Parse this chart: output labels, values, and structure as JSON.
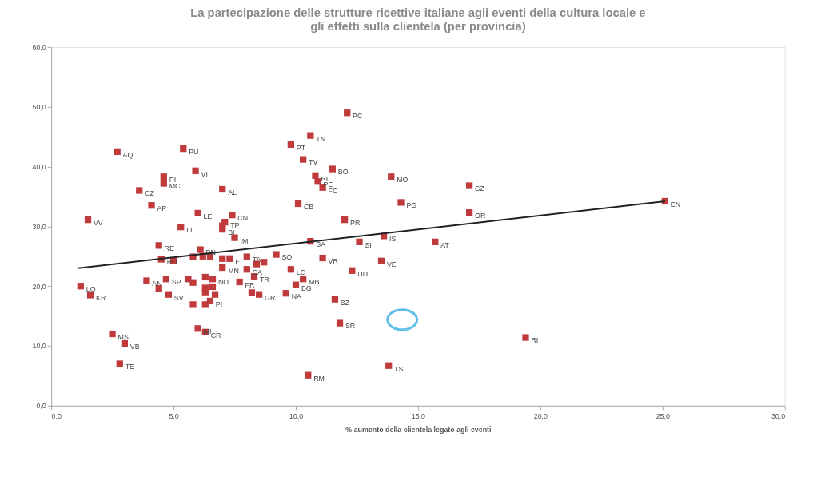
{
  "chart_data": {
    "type": "scatter",
    "title": [
      "La partecipazione delle strutture ricettive italiane agli eventi della cultura locale e",
      "gli effetti sulla clientela (per provincia)"
    ],
    "xlabel": "% aumento della clientela legato agli eventi",
    "xlim": [
      0,
      30
    ],
    "ylim": [
      0,
      60
    ],
    "xticks": [
      {
        "value": 0,
        "label": "0,0"
      },
      {
        "value": 5,
        "label": "5,0"
      },
      {
        "value": 10,
        "label": "10,0"
      },
      {
        "value": 15,
        "label": "15,0"
      },
      {
        "value": 20,
        "label": "20,0"
      },
      {
        "value": 25,
        "label": "25,0"
      },
      {
        "value": 30,
        "label": "30,0"
      }
    ],
    "yticks": [
      {
        "value": 0,
        "label": "0,0"
      },
      {
        "value": 10,
        "label": "10,0"
      },
      {
        "value": 20,
        "label": "20,0"
      },
      {
        "value": 30,
        "label": "30,0"
      },
      {
        "value": 40,
        "label": "40,0"
      },
      {
        "value": 50,
        "label": "50,0"
      },
      {
        "value": 60,
        "label": "60,0"
      }
    ],
    "grid": false,
    "marker": "square",
    "series": [
      {
        "color": "#c0393b",
        "x": [
          12.1,
          10.6,
          9.8,
          2.7,
          5.4,
          10.3,
          5.9,
          11.5,
          10.8,
          13.9,
          4.6,
          4.6,
          10.9,
          11.1,
          17.1,
          7.0,
          3.6,
          10.1,
          14.3,
          4.1,
          17.1,
          6.0,
          7.4,
          1.5,
          12.0,
          7.1,
          7.0,
          5.3,
          7.0,
          7.5,
          10.6,
          12.6,
          13.6,
          15.7,
          25.1,
          4.4,
          4.5,
          5.0,
          5.8,
          6.1,
          6.2,
          6.5,
          7.0,
          7.3,
          8.0,
          8.4,
          8.7,
          9.2,
          9.8,
          10.3,
          10.0,
          9.6,
          11.1,
          13.5,
          12.3,
          11.6,
          11.8,
          19.4,
          13.8,
          10.5,
          8.0,
          8.3,
          7.7,
          8.2,
          8.5,
          6.3,
          6.6,
          5.6,
          5.8,
          6.3,
          6.6,
          6.3,
          6.7,
          6.5,
          5.8,
          6.3,
          3.9,
          4.7,
          4.4,
          4.8,
          1.2,
          1.6,
          2.5,
          3.0,
          2.8,
          6.0,
          6.3,
          7.0
        ],
        "values": [
          49.0,
          45.2,
          43.7,
          42.5,
          43.0,
          41.2,
          39.3,
          39.6,
          38.5,
          38.3,
          38.3,
          37.2,
          37.5,
          36.5,
          36.8,
          36.2,
          36.0,
          33.8,
          34.0,
          33.5,
          32.3,
          32.2,
          31.9,
          31.1,
          31.1,
          30.7,
          30.1,
          29.9,
          29.5,
          28.1,
          27.5,
          27.4,
          28.4,
          27.4,
          34.2,
          26.8,
          24.5,
          24.3,
          24.9,
          26.1,
          25.0,
          24.9,
          24.6,
          24.6,
          24.9,
          23.7,
          24.0,
          25.3,
          22.8,
          21.2,
          20.2,
          18.8,
          24.7,
          24.2,
          22.6,
          17.8,
          13.8,
          11.4,
          6.7,
          5.1,
          22.8,
          21.6,
          20.7,
          18.9,
          18.6,
          21.5,
          21.2,
          21.2,
          20.6,
          19.7,
          19.9,
          19.0,
          18.6,
          17.5,
          16.9,
          16.9,
          20.9,
          21.2,
          19.6,
          18.6,
          20.0,
          18.5,
          12.0,
          10.4,
          7.0,
          12.9,
          12.3,
          23.1
        ],
        "value_labels": [
          "PC",
          "TN",
          "PT",
          "AQ",
          "PU",
          "TV",
          "VI",
          "BO",
          "RI",
          "MO",
          "PI",
          "MC",
          "PE",
          "FC",
          "CZ",
          "AL",
          "CZ",
          "CB",
          "PG",
          "AP",
          "OR",
          "LE",
          "CN",
          "VV",
          "PR",
          "TP",
          null,
          "LI",
          "BI",
          "IM",
          "SA",
          "SI",
          "IS",
          "AT",
          "EN",
          "RE",
          "RO",
          null,
          null,
          "BN",
          null,
          null,
          null,
          "EL",
          "TA",
          null,
          null,
          "SO",
          "LC",
          "MB",
          "BG",
          "NA",
          "VR",
          "VE",
          "UD",
          "BZ",
          "SR",
          "RI",
          "TS",
          "RM",
          "CA",
          "TR",
          "FR",
          null,
          "GR",
          null,
          "NO",
          null,
          null,
          null,
          null,
          null,
          null,
          "PI",
          null,
          null,
          "AN",
          "SP",
          null,
          "SV",
          "LO",
          "KR",
          "MS",
          "VB",
          "TE",
          "MI",
          "CR",
          "MN"
        ]
      },
      {
        "type": "line",
        "color": "#222222",
        "marker": "none",
        "line_style": "solid",
        "x": [
          1.1,
          25.1
        ],
        "values": [
          23.0,
          34.2
        ]
      }
    ]
  }
}
